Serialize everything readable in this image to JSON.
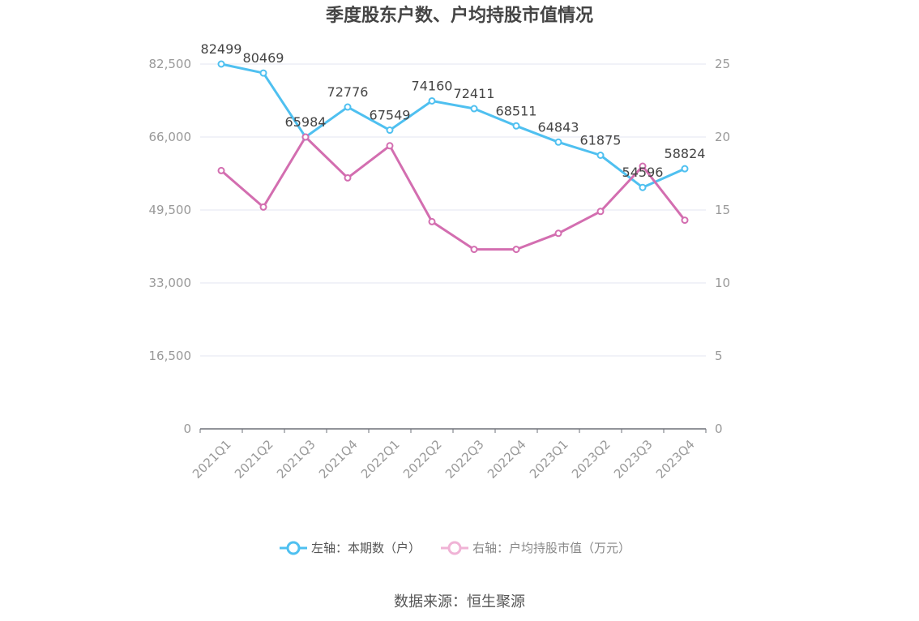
{
  "chart_data": {
    "type": "line",
    "title": "季度股东户数、户均持股市值情况",
    "categories": [
      "2021Q1",
      "2021Q2",
      "2021Q3",
      "2021Q4",
      "2022Q1",
      "2022Q2",
      "2022Q3",
      "2022Q4",
      "2023Q1",
      "2023Q2",
      "2023Q3",
      "2023Q4"
    ],
    "left_axis": {
      "ticks": [
        "0",
        "16,500",
        "33,000",
        "49,500",
        "66,000",
        "82,500"
      ],
      "ylim": [
        0,
        82500
      ]
    },
    "right_axis": {
      "ticks": [
        "0",
        "5",
        "10",
        "15",
        "20",
        "25"
      ],
      "ylim": [
        0,
        25
      ]
    },
    "grid": true,
    "legend_position": "bottom",
    "series": [
      {
        "name": "左轴：本期数（户）",
        "axis": "left",
        "color": "#4fc0f0",
        "values": [
          82499,
          80469,
          65984,
          72776,
          67549,
          74160,
          72411,
          68511,
          64843,
          61875,
          54596,
          58824
        ],
        "labels": [
          "82499",
          "80469",
          "65984",
          "72776",
          "67549",
          "74160",
          "72411",
          "68511",
          "64843",
          "61875",
          "54596",
          "58824"
        ]
      },
      {
        "name": "右轴：户均持股市值（万元）",
        "axis": "right",
        "color": "#d36eb0",
        "values": [
          17.7,
          15.2,
          20.0,
          17.2,
          19.4,
          14.2,
          12.3,
          12.3,
          13.4,
          14.9,
          18.0,
          14.3
        ]
      }
    ]
  },
  "source": "数据来源：恒生聚源"
}
